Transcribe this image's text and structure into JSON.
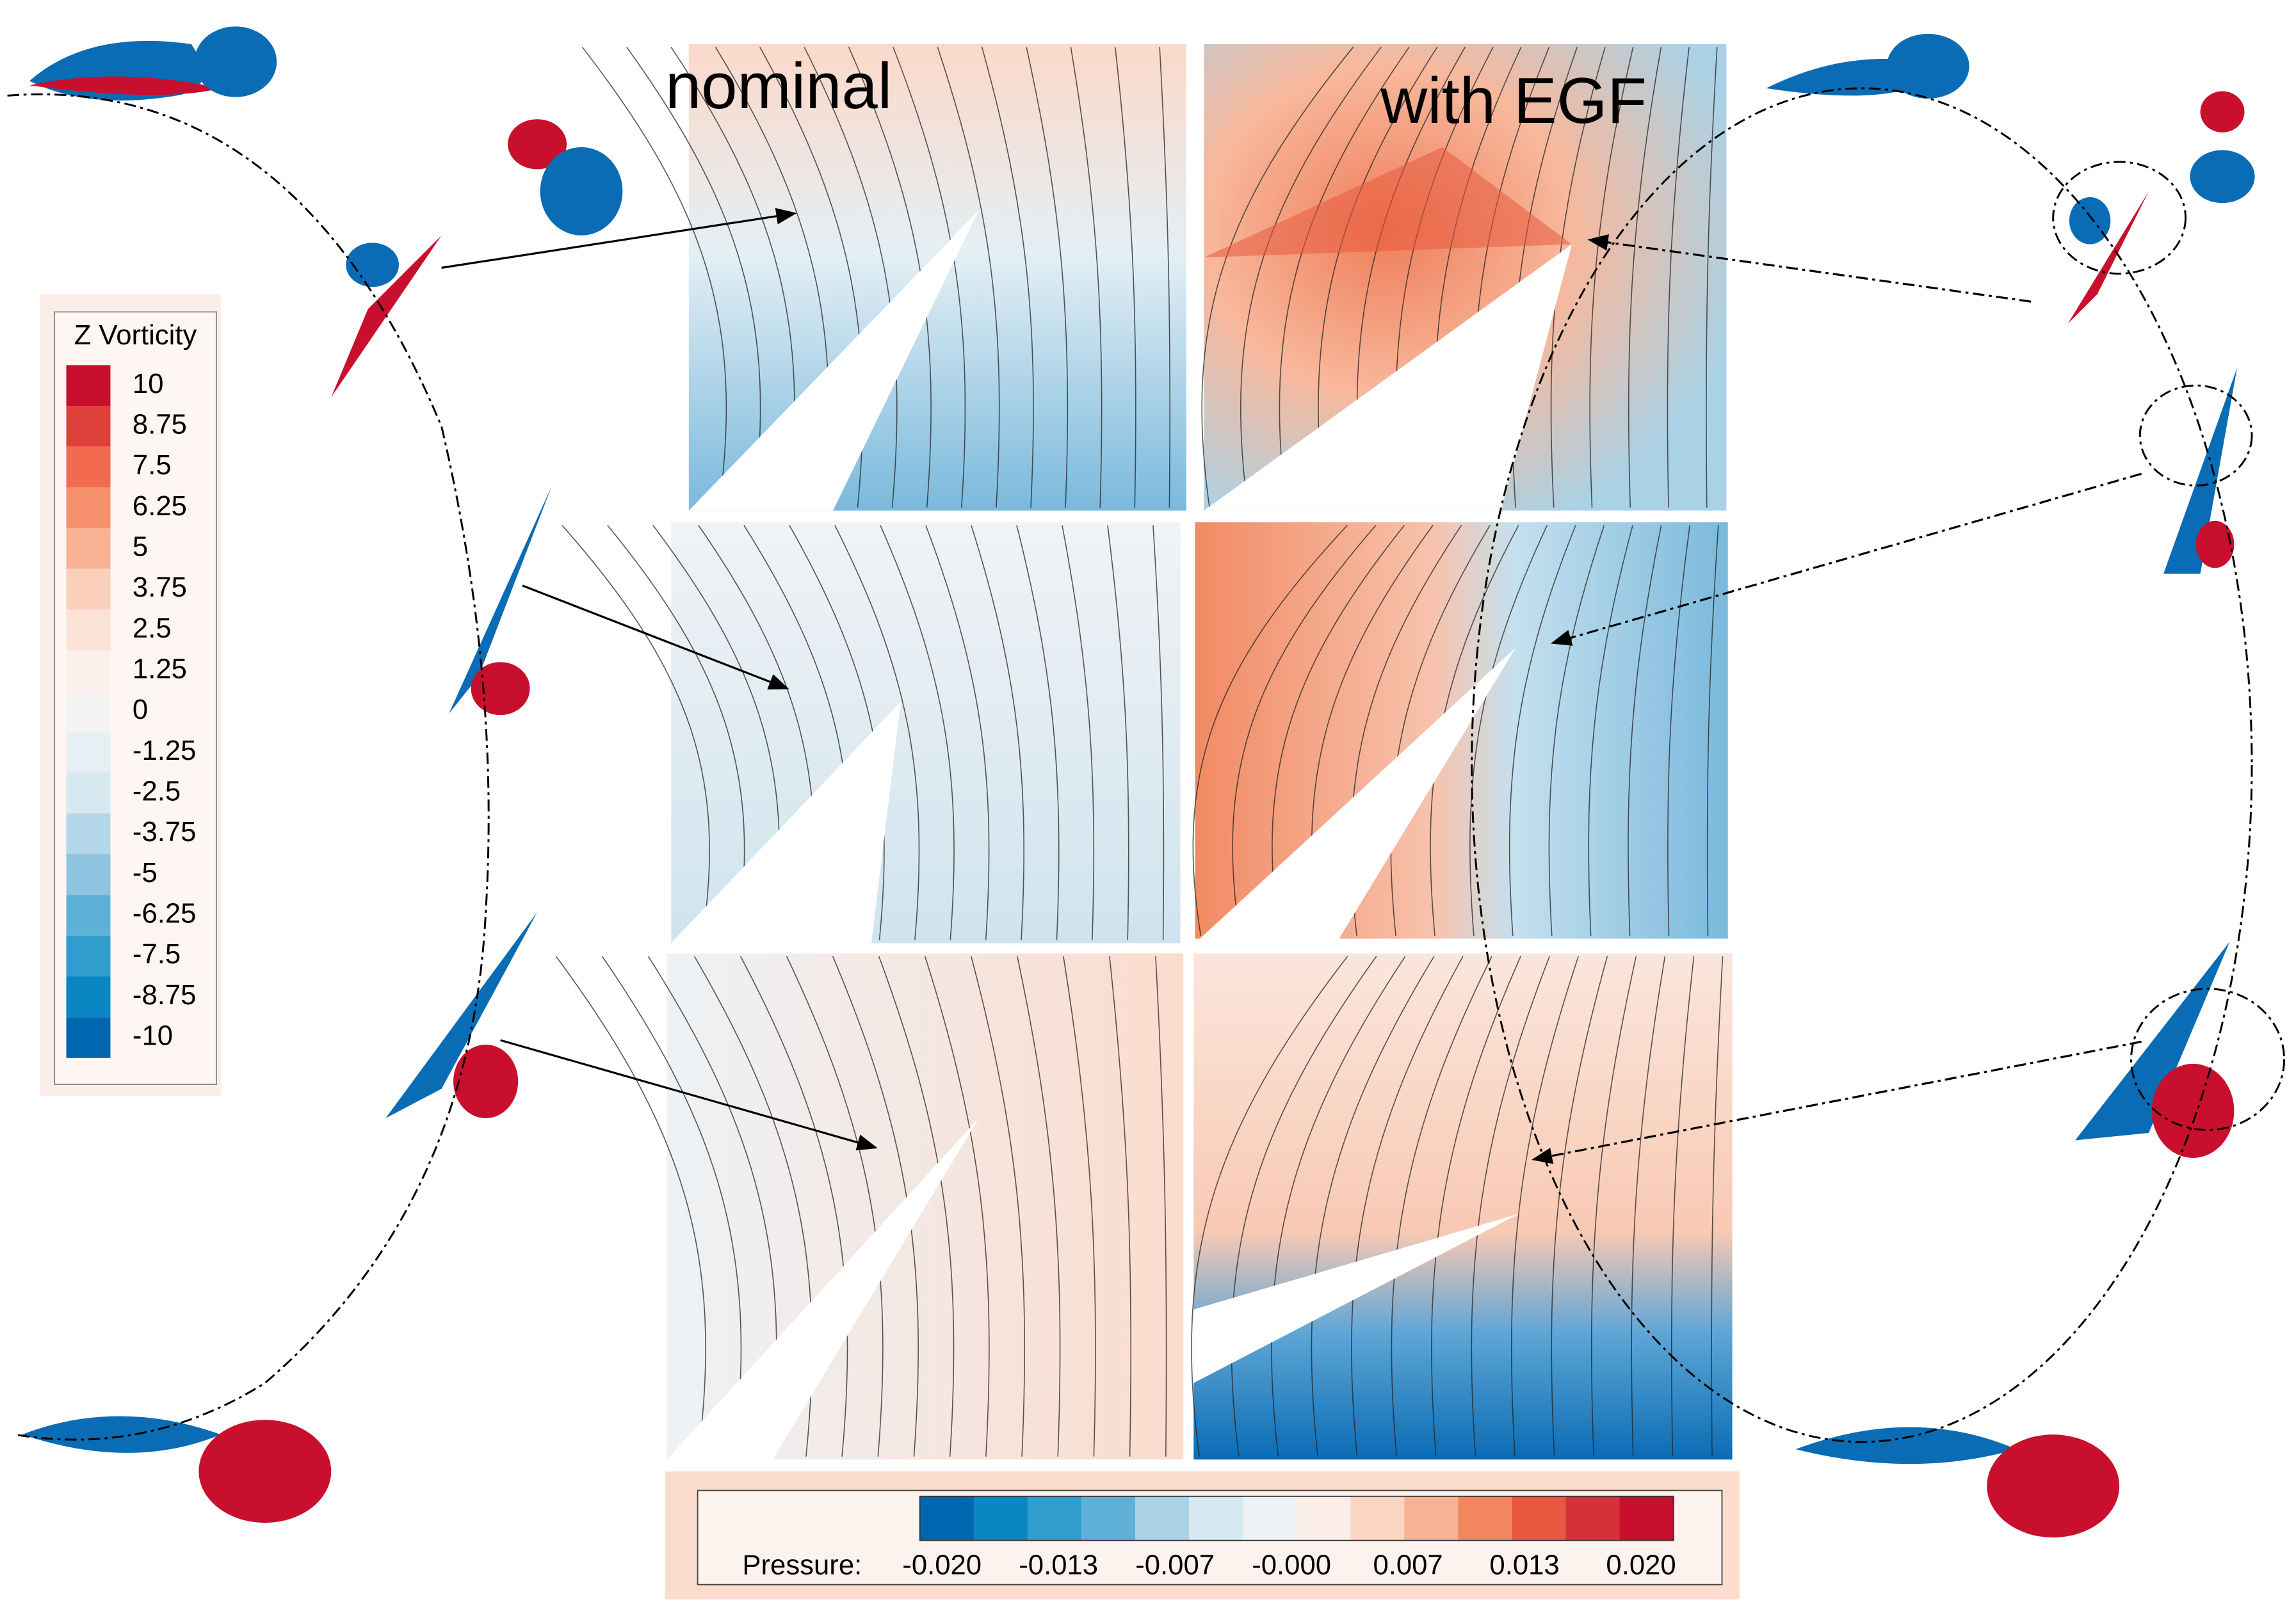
{
  "labels": {
    "nominal": "nominal",
    "with_egf": "with EGF"
  },
  "vorticity_legend": {
    "title": "Z Vorticity",
    "levels": [
      "10",
      "8.75",
      "7.5",
      "6.25",
      "5",
      "3.75",
      "2.5",
      "1.25",
      "0",
      "-1.25",
      "-2.5",
      "-3.75",
      "-5",
      "-6.25",
      "-7.5",
      "-8.75",
      "-10"
    ],
    "colors": [
      "#c8102e",
      "#e0403a",
      "#f26a4f",
      "#f6906c",
      "#f8b193",
      "#fad0bb",
      "#fbe2d6",
      "#fcf0ea",
      "#f4f4f4",
      "#e6eff4",
      "#d6e8f0",
      "#b3d6e8",
      "#8ec4df",
      "#5fb0d6",
      "#2f9dcd",
      "#0a87c2",
      "#0066b0"
    ]
  },
  "pressure_colorbar": {
    "label": "Pressure:",
    "ticks": [
      "-0.020",
      "-0.013",
      "-0.007",
      "-0.000",
      "0.007",
      "0.013",
      "0.020"
    ],
    "colors": [
      "#0066b0",
      "#0a87c2",
      "#2f9dcd",
      "#5fb0d6",
      "#a9d2e6",
      "#d6e8f0",
      "#eef2f5",
      "#fbeee8",
      "#fbd6c4",
      "#f8b193",
      "#f2865f",
      "#e8573f",
      "#d6303a",
      "#c8102e"
    ]
  }
}
